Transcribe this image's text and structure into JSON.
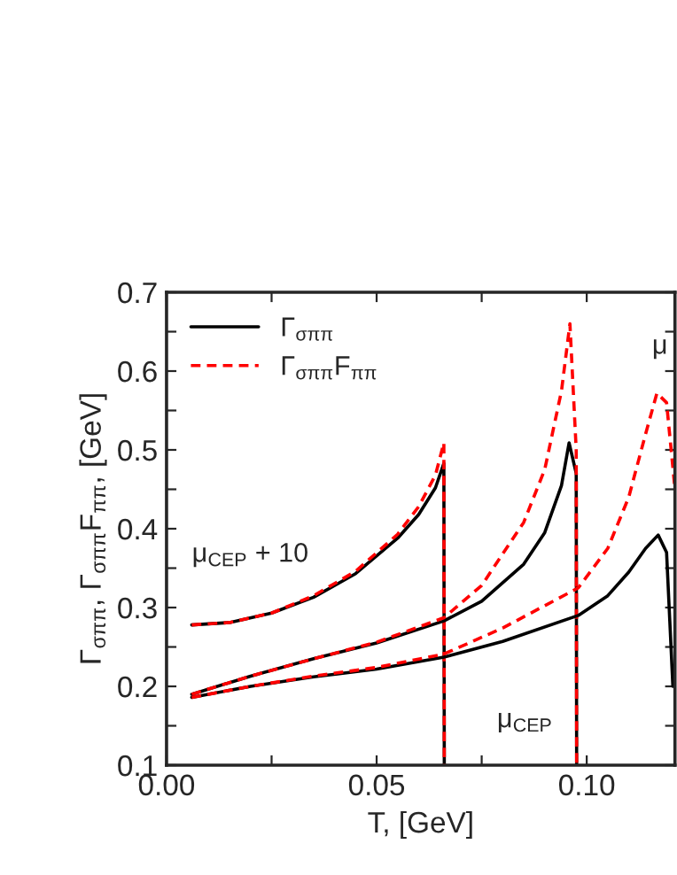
{
  "chart_data": {
    "type": "line",
    "xlabel": "T, [GeV]",
    "ylabel": "Γ$_{σππ}$, Γ$_{σππ}$F$_{ππ}$, [GeV]",
    "xlim": [
      0,
      0.121
    ],
    "ylim": [
      0.1,
      0.7
    ],
    "xticks": [
      {
        "value": 0,
        "label": "0.00"
      },
      {
        "value": 0.025,
        "label": null
      },
      {
        "value": 0.05,
        "label": "0.05"
      },
      {
        "value": 0.075,
        "label": null
      },
      {
        "value": 0.1,
        "label": "0.10"
      }
    ],
    "yticks": [
      0.1,
      {
        "value": 0.15,
        "label": null
      },
      0.2,
      {
        "value": 0.25,
        "label": null
      },
      0.3,
      {
        "value": 0.35,
        "label": null
      },
      0.4,
      {
        "value": 0.45,
        "label": null
      },
      0.5,
      {
        "value": 0.55,
        "label": null
      },
      0.6,
      {
        "value": 0.65,
        "label": null
      },
      0.7
    ],
    "legend": "top left",
    "grid": false,
    "annotations": [
      "μ$_{CEP}$ + 10",
      "μ$_{CEP}$",
      "μ"
    ],
    "series": [
      {
        "name": "Γ$_{σππ}$",
        "color": "#000000",
        "line_style": "solid",
        "x": [
          0.006,
          0.015,
          0.025,
          0.035,
          0.045,
          0.055,
          0.06,
          0.064,
          0.066,
          0.0661
        ],
        "values": [
          0.278,
          0.281,
          0.293,
          0.313,
          0.343,
          0.388,
          0.418,
          0.452,
          0.483,
          0.1
        ]
      },
      {
        "name": "Γ$_{σππ}$F$_{ππ}$",
        "color": "#ff0000",
        "line_style": "dashed",
        "x": [
          0.006,
          0.015,
          0.025,
          0.035,
          0.045,
          0.055,
          0.06,
          0.064,
          0.066,
          0.0661
        ],
        "values": [
          0.278,
          0.281,
          0.293,
          0.315,
          0.346,
          0.393,
          0.428,
          0.468,
          0.509,
          0.1
        ]
      },
      {
        "color": "#000000",
        "line_style": "solid",
        "x": [
          0.006,
          0.02,
          0.035,
          0.05,
          0.066,
          0.075,
          0.085,
          0.09,
          0.094,
          0.0958,
          0.0975,
          0.0976
        ],
        "values": [
          0.19,
          0.213,
          0.235,
          0.255,
          0.283,
          0.308,
          0.355,
          0.395,
          0.455,
          0.509,
          0.47,
          0.1
        ]
      },
      {
        "color": "#ff0000",
        "line_style": "dashed",
        "x": [
          0.006,
          0.02,
          0.035,
          0.05,
          0.066,
          0.075,
          0.085,
          0.09,
          0.094,
          0.096,
          0.0975,
          0.0976
        ],
        "values": [
          0.19,
          0.213,
          0.235,
          0.256,
          0.287,
          0.328,
          0.408,
          0.475,
          0.575,
          0.66,
          0.5,
          0.1
        ]
      },
      {
        "color": "#000000",
        "line_style": "solid",
        "x": [
          0.006,
          0.02,
          0.035,
          0.05,
          0.066,
          0.08,
          0.098,
          0.105,
          0.11,
          0.114,
          0.117,
          0.119,
          0.1205
        ],
        "values": [
          0.186,
          0.2,
          0.212,
          0.222,
          0.237,
          0.257,
          0.29,
          0.315,
          0.345,
          0.375,
          0.392,
          0.37,
          0.2
        ]
      },
      {
        "color": "#ff0000",
        "line_style": "dashed",
        "x": [
          0.006,
          0.02,
          0.035,
          0.05,
          0.066,
          0.08,
          0.098,
          0.105,
          0.11,
          0.114,
          0.1167,
          0.119,
          0.121
        ],
        "values": [
          0.186,
          0.2,
          0.213,
          0.224,
          0.241,
          0.274,
          0.325,
          0.375,
          0.44,
          0.52,
          0.572,
          0.56,
          0.45
        ]
      }
    ]
  }
}
